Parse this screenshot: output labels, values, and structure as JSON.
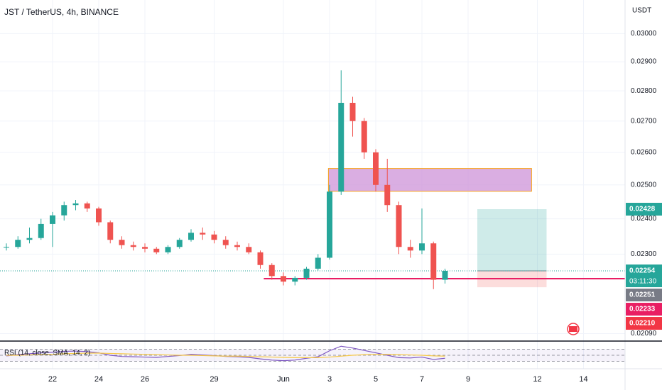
{
  "chart_data": [
    {
      "type": "candlestick",
      "title": "JST / TetherUS, 4h, BINANCE",
      "y_axis_unit": "USDT",
      "log_scale": true,
      "grid": true,
      "up_color": "#26a69a",
      "down_color": "#ef5350",
      "categories": [
        null,
        null,
        null,
        null,
        "22",
        null,
        null,
        null,
        "24",
        null,
        null,
        null,
        "26",
        null,
        null,
        null,
        null,
        null,
        "29",
        null,
        null,
        null,
        null,
        null,
        "Jun",
        null,
        null,
        null,
        "3",
        null,
        null,
        null,
        "5",
        null,
        null,
        null,
        "7",
        null,
        null,
        null,
        "9",
        null,
        null,
        null,
        null,
        null,
        "12",
        null,
        null,
        null,
        "14",
        null
      ],
      "open": [
        0.02318,
        0.0232,
        0.0234,
        0.02345,
        0.02385,
        0.0241,
        0.0244,
        0.02445,
        0.0243,
        0.0239,
        0.0234,
        0.02325,
        0.0232,
        0.02315,
        0.02305,
        0.0232,
        0.0234,
        0.0236,
        0.02355,
        0.0234,
        0.02325,
        0.0232,
        0.02305,
        0.0227,
        0.0224,
        0.02225,
        0.02235,
        0.0226,
        0.0229,
        0.0248,
        0.0276,
        0.027,
        0.026,
        0.025,
        0.0244,
        0.0232,
        0.0231,
        0.0233,
        0.0223,
        null,
        null,
        null,
        null,
        null,
        null,
        null,
        null,
        null,
        null,
        null,
        null,
        null
      ],
      "high": [
        0.0233,
        0.0235,
        0.02375,
        0.024,
        0.0242,
        0.0245,
        0.02455,
        0.0245,
        0.02435,
        0.02395,
        0.0235,
        0.02335,
        0.0233,
        0.0232,
        0.02325,
        0.02345,
        0.0237,
        0.02375,
        0.02365,
        0.0235,
        0.02335,
        0.0233,
        0.0231,
        0.02275,
        0.0225,
        0.0224,
        0.02265,
        0.023,
        0.025,
        0.0287,
        0.0278,
        0.0271,
        0.0261,
        0.0258,
        0.0245,
        0.0234,
        0.0243,
        0.02335,
        0.0226,
        null,
        null,
        null,
        null,
        null,
        null,
        null,
        null,
        null,
        null,
        null,
        null,
        null
      ],
      "low": [
        0.0231,
        0.02315,
        0.0233,
        0.0234,
        0.0232,
        0.02395,
        0.02425,
        0.0242,
        0.0238,
        0.0233,
        0.02315,
        0.0231,
        0.02305,
        0.023,
        0.023,
        0.02315,
        0.02335,
        0.0234,
        0.0233,
        0.02315,
        0.0231,
        0.023,
        0.0226,
        0.0223,
        0.02215,
        0.02215,
        0.0223,
        0.02255,
        0.02285,
        0.0247,
        0.0265,
        0.0258,
        0.0248,
        0.0242,
        0.023,
        0.0229,
        0.023,
        0.02205,
        0.0222,
        null,
        null,
        null,
        null,
        null,
        null,
        null,
        null,
        null,
        null,
        null,
        null,
        null
      ],
      "close": [
        0.0232,
        0.0234,
        0.02345,
        0.02385,
        0.0241,
        0.0244,
        0.02445,
        0.0243,
        0.0239,
        0.0234,
        0.02325,
        0.0232,
        0.02315,
        0.02305,
        0.0232,
        0.0234,
        0.0236,
        0.02355,
        0.0234,
        0.02325,
        0.0232,
        0.02305,
        0.0227,
        0.0224,
        0.02225,
        0.02235,
        0.0226,
        0.0229,
        0.0248,
        0.0276,
        0.027,
        0.026,
        0.025,
        0.0244,
        0.0232,
        0.0231,
        0.0233,
        0.0223,
        0.02254,
        null,
        null,
        null,
        null,
        null,
        null,
        null,
        null,
        null,
        null,
        null,
        null,
        null
      ],
      "ylim": [
        0.02073,
        0.03124
      ],
      "yticks": [
        {
          "value": 0.03,
          "label": "0.03000"
        },
        {
          "value": 0.029,
          "label": "0.02900"
        },
        {
          "value": 0.028,
          "label": "0.02800"
        },
        {
          "value": 0.027,
          "label": "0.02700"
        },
        {
          "value": 0.026,
          "label": "0.02600"
        },
        {
          "value": 0.025,
          "label": "0.02500"
        },
        {
          "value": 0.024,
          "label": "0.02400"
        },
        {
          "value": 0.023,
          "label": "0.02300"
        },
        {
          "value": 0.0209,
          "label": "0.02090"
        }
      ],
      "zone": {
        "x": [
          27.9,
          45.5
        ],
        "y": [
          0.02481,
          0.0255
        ],
        "color": "#ce93d8"
      },
      "position": {
        "x": [
          40.8,
          46.8
        ],
        "entry": 0.02254,
        "target": 0.02428,
        "stop": 0.0221
      },
      "level_line": {
        "x_start": 22.3,
        "value": 0.02233,
        "color": "#e91e63"
      },
      "current_price": 0.02254,
      "price_labels": [
        {
          "value": 0.02428,
          "label": "0.02428",
          "color": "#26a69a"
        },
        {
          "value": 0.02254,
          "label": "0.02254",
          "countdown": "03:11:30",
          "color": "#26a69a"
        },
        {
          "value": 0.02251,
          "label": "0.02251",
          "color": "#787b86"
        },
        {
          "value": 0.02233,
          "label": "0.02233",
          "color": "#e91e63"
        },
        {
          "value": 0.0221,
          "label": "0.02210",
          "color": "#f23645"
        }
      ]
    },
    {
      "type": "line",
      "title": "RSI (14, close, SMA, 14, 2)",
      "ylim": [
        10,
        90
      ],
      "hlines": [
        70,
        50,
        30
      ],
      "series": [
        {
          "name": "RSI",
          "color": "#7e57c2",
          "values": [
            48,
            52,
            55,
            58,
            60,
            63,
            64,
            62,
            58,
            50,
            46,
            45,
            44,
            43,
            46,
            49,
            53,
            51,
            49,
            46,
            45,
            43,
            38,
            34,
            32,
            34,
            40,
            45,
            65,
            80,
            74,
            66,
            58,
            50,
            42,
            41,
            44,
            36,
            40
          ]
        },
        {
          "name": "SMA",
          "color": "#f7c948",
          "values": [
            50,
            50,
            51,
            52,
            53,
            55,
            56,
            57,
            57,
            56,
            55,
            54,
            53,
            52,
            51,
            50,
            50,
            49,
            48,
            47,
            47,
            46,
            45,
            44,
            43,
            42,
            42,
            42,
            44,
            47,
            50,
            52,
            53,
            53,
            52,
            51,
            50,
            48,
            47
          ]
        }
      ]
    }
  ]
}
